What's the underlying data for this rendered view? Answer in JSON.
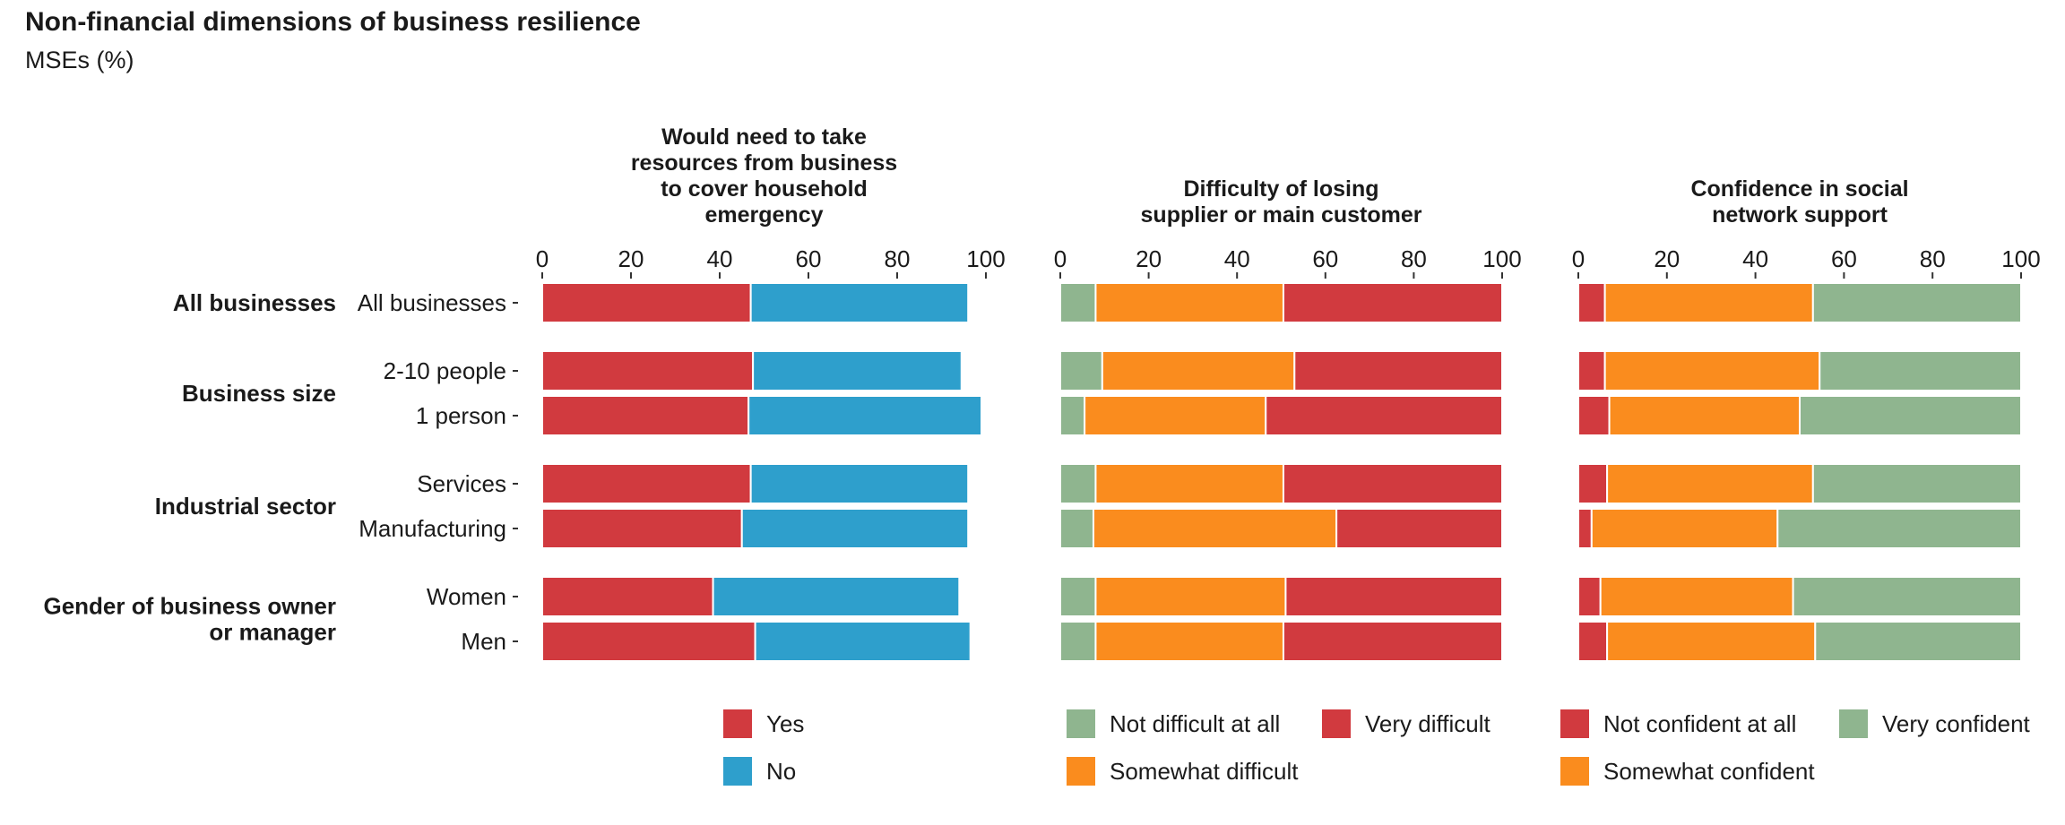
{
  "header": {
    "title": "Non-financial dimensions of business resilience",
    "subtitle": "MSEs (%)"
  },
  "chart_data": {
    "type": "bar",
    "orientation": "horizontal",
    "stacked": true,
    "xlim": [
      0,
      100
    ],
    "ticks": [
      "0",
      "20",
      "40",
      "60",
      "80",
      "100"
    ],
    "grid": false,
    "groups": [
      {
        "label": "All businesses",
        "rows": [
          "All businesses"
        ]
      },
      {
        "label": "Business size",
        "rows": [
          "2-10 people",
          "1 person"
        ]
      },
      {
        "label": "Industrial sector",
        "rows": [
          "Services",
          "Manufacturing"
        ]
      },
      {
        "label": "Gender of business owner\nor manager",
        "rows": [
          "Women",
          "Men"
        ]
      }
    ],
    "categories": [
      "All businesses",
      "2-10 people",
      "1 person",
      "Services",
      "Manufacturing",
      "Women",
      "Men"
    ],
    "panels": [
      {
        "title": "Would need to take\nresources from business\nto cover household\nemergency",
        "series": [
          {
            "name": "Yes",
            "color": "#d13a3f",
            "values": [
              47,
              47.5,
              46.5,
              47,
              45,
              38.5,
              48
            ]
          },
          {
            "name": "No",
            "color": "#2e9fcc",
            "values": [
              49,
              47,
              52.5,
              49,
              51,
              55.5,
              48.5
            ]
          }
        ],
        "legend_rows": [
          [
            "Yes"
          ],
          [
            "No"
          ]
        ]
      },
      {
        "title": "Difficulty of losing\nsupplier or main customer",
        "series": [
          {
            "name": "Not difficult at all",
            "color": "#8fb58f",
            "values": [
              8,
              9.5,
              5.5,
              8,
              7.5,
              8,
              8
            ]
          },
          {
            "name": "Somewhat difficult",
            "color": "#fa8c1e",
            "values": [
              42.5,
              43.5,
              41,
              42.5,
              55,
              43,
              42.5
            ]
          },
          {
            "name": "Very difficult",
            "color": "#d13a3f",
            "values": [
              49.5,
              47,
              53.5,
              49.5,
              37.5,
              49,
              49.5
            ]
          }
        ],
        "legend_rows": [
          [
            "Not difficult at all",
            "Very difficult"
          ],
          [
            "Somewhat difficult"
          ]
        ]
      },
      {
        "title": "Confidence in social\nnetwork support",
        "series": [
          {
            "name": "Not confident at all",
            "color": "#d13a3f",
            "values": [
              6,
              6,
              7,
              6.5,
              3,
              5,
              6.5
            ]
          },
          {
            "name": "Somewhat confident",
            "color": "#fa8c1e",
            "values": [
              47,
              48.5,
              43,
              46.5,
              42,
              43.5,
              47
            ]
          },
          {
            "name": "Very confident",
            "color": "#8fb58f",
            "values": [
              47,
              45.5,
              50,
              47,
              55,
              51.5,
              46.5
            ]
          }
        ],
        "legend_rows": [
          [
            "Not confident at all",
            "Very confident"
          ],
          [
            "Somewhat confident"
          ]
        ]
      }
    ]
  }
}
